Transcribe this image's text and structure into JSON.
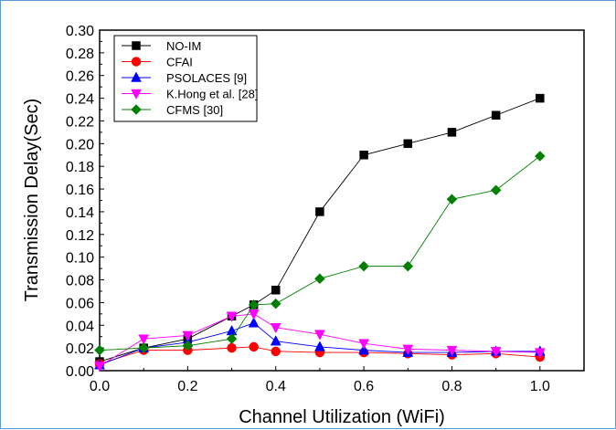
{
  "chart_data": {
    "type": "line",
    "title": "",
    "xlabel": "Channel Utilization (WiFi)",
    "ylabel": "Transmission Delay(Sec)",
    "xlim": [
      0.0,
      1.1
    ],
    "ylim": [
      0.0,
      0.3
    ],
    "x_ticks": [
      "0.0",
      "0.2",
      "0.4",
      "0.6",
      "0.8",
      "1.0"
    ],
    "x_tick_values": [
      0.0,
      0.2,
      0.4,
      0.6,
      0.8,
      1.0
    ],
    "y_ticks": [
      "0.00",
      "0.02",
      "0.04",
      "0.06",
      "0.08",
      "0.10",
      "0.12",
      "0.14",
      "0.16",
      "0.18",
      "0.20",
      "0.22",
      "0.24",
      "0.26",
      "0.28",
      "0.30"
    ],
    "y_tick_values": [
      0.0,
      0.02,
      0.04,
      0.06,
      0.08,
      0.1,
      0.12,
      0.14,
      0.16,
      0.18,
      0.2,
      0.22,
      0.24,
      0.26,
      0.28,
      0.3
    ],
    "grid": false,
    "legend_position": "top-left",
    "series": [
      {
        "name": "NO-IM",
        "color": "#000000",
        "marker": "square",
        "x": [
          0.0,
          0.1,
          0.2,
          0.3,
          0.35,
          0.4,
          0.5,
          0.6,
          0.7,
          0.8,
          0.9,
          1.0
        ],
        "y": [
          0.008,
          0.02,
          0.028,
          0.048,
          0.058,
          0.071,
          0.14,
          0.19,
          0.2,
          0.21,
          0.225,
          0.24
        ]
      },
      {
        "name": "CFAI",
        "color": "#ff0000",
        "marker": "circle",
        "x": [
          0.0,
          0.1,
          0.2,
          0.3,
          0.35,
          0.4,
          0.5,
          0.6,
          0.7,
          0.8,
          0.9,
          1.0
        ],
        "y": [
          0.006,
          0.018,
          0.018,
          0.02,
          0.021,
          0.017,
          0.016,
          0.016,
          0.015,
          0.014,
          0.015,
          0.012
        ]
      },
      {
        "name": "PSOLACES [9]",
        "color": "#0000ff",
        "marker": "triangle-up",
        "x": [
          0.0,
          0.1,
          0.2,
          0.3,
          0.35,
          0.4,
          0.5,
          0.6,
          0.7,
          0.8,
          0.9,
          1.0
        ],
        "y": [
          0.005,
          0.02,
          0.025,
          0.035,
          0.042,
          0.026,
          0.021,
          0.018,
          0.016,
          0.016,
          0.017,
          0.017
        ]
      },
      {
        "name": "K.Hong et al. [28]",
        "color": "#ff00ff",
        "marker": "triangle-down",
        "x": [
          0.0,
          0.1,
          0.2,
          0.3,
          0.35,
          0.4,
          0.5,
          0.6,
          0.7,
          0.8,
          0.9,
          1.0
        ],
        "y": [
          0.004,
          0.028,
          0.031,
          0.048,
          0.05,
          0.038,
          0.032,
          0.024,
          0.019,
          0.018,
          0.017,
          0.016
        ]
      },
      {
        "name": "CFMS [30]",
        "color": "#008000",
        "marker": "diamond",
        "x": [
          0.0,
          0.1,
          0.2,
          0.3,
          0.35,
          0.4,
          0.5,
          0.6,
          0.7,
          0.8,
          0.9,
          1.0
        ],
        "y": [
          0.018,
          0.02,
          0.022,
          0.028,
          0.058,
          0.059,
          0.081,
          0.092,
          0.092,
          0.151,
          0.159,
          0.189
        ]
      }
    ]
  }
}
